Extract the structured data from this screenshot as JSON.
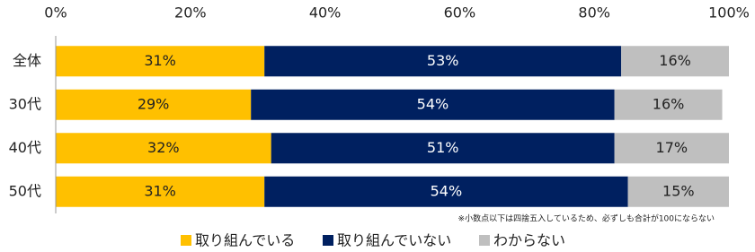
{
  "chart_data": {
    "type": "stacked-bar-horizontal",
    "categories": [
      "全体",
      "30代",
      "40代",
      "50代"
    ],
    "series": [
      {
        "name": "取り組んでいる",
        "color": "#FFC000",
        "values": [
          31,
          29,
          32,
          31
        ],
        "value_labels": [
          "31%",
          "29%",
          "32%",
          "31%"
        ]
      },
      {
        "name": "取り組んでいない",
        "color": "#002060",
        "values": [
          53,
          54,
          51,
          54
        ],
        "value_labels": [
          "53%",
          "54%",
          "51%",
          "54%"
        ]
      },
      {
        "name": "わからない",
        "color": "#BFBFBF",
        "values": [
          16,
          16,
          17,
          15
        ],
        "value_labels": [
          "16%",
          "16%",
          "17%",
          "15%"
        ]
      }
    ],
    "xlim": [
      0,
      100
    ],
    "xticks": [
      {
        "value": 0,
        "label": "0%"
      },
      {
        "value": 20,
        "label": "20%"
      },
      {
        "value": 40,
        "label": "40%"
      },
      {
        "value": 60,
        "label": "60%"
      },
      {
        "value": 80,
        "label": "80%"
      },
      {
        "value": 100,
        "label": "100%"
      }
    ],
    "note": "※小数点以下は四捨五入しているため、必ずしも合計が100にならない",
    "legend": "bottom"
  }
}
